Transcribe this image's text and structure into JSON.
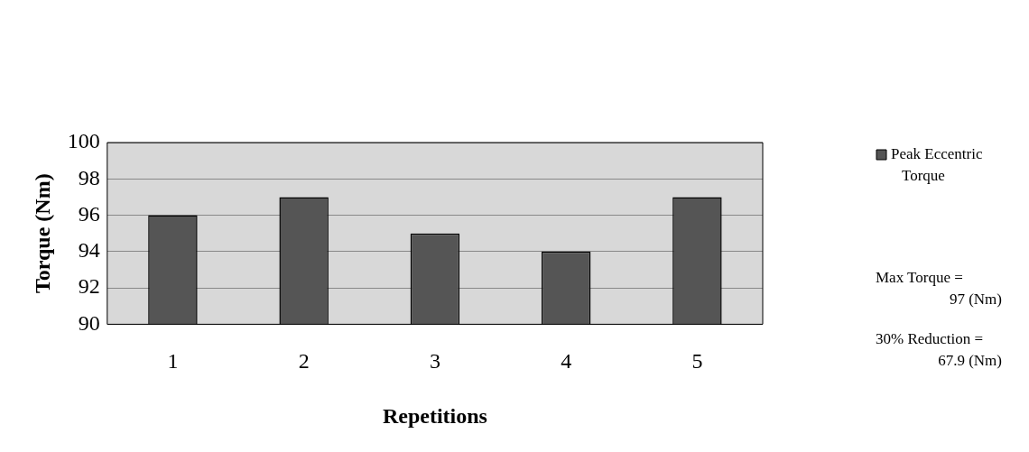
{
  "chart_data": {
    "type": "bar",
    "xlabel": "Repetitions",
    "ylabel": "Torque (Nm)",
    "categories": [
      "1",
      "2",
      "3",
      "4",
      "5"
    ],
    "series": [
      {
        "name": "Peak Eccentric Torque",
        "color": "#555555",
        "values": [
          96,
          97,
          95,
          94,
          97
        ]
      }
    ],
    "ylim": [
      90,
      100
    ],
    "yticks": [
      90,
      92,
      94,
      96,
      98,
      100
    ],
    "grid": "y",
    "legend": "top right",
    "annotations": [
      "Max Torque =\n97 (Nm)",
      "30% Reduction =\n67.9 (Nm)"
    ]
  }
}
